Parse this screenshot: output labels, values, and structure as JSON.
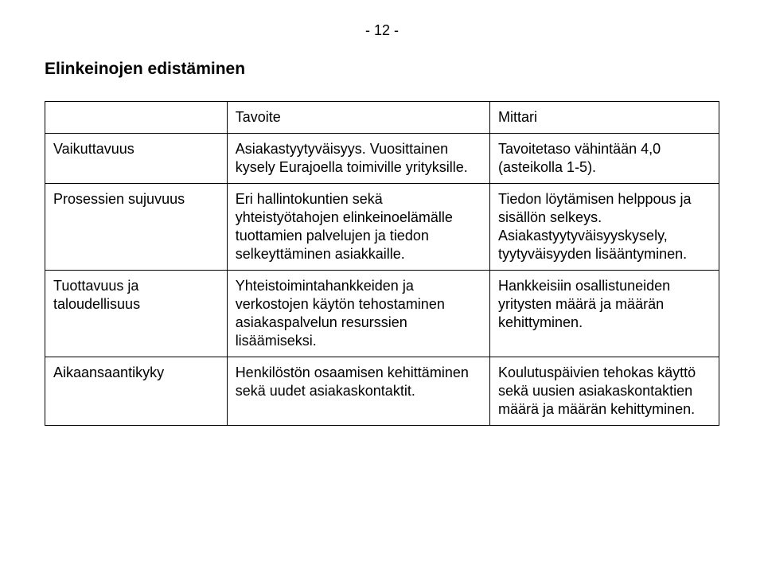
{
  "page_number_text": "- 12 -",
  "heading": "Elinkeinojen edistäminen",
  "table": {
    "header": {
      "col1": "",
      "col2": "Tavoite",
      "col3": "Mittari"
    },
    "rows": [
      {
        "label": "Vaikuttavuus",
        "goal": "Asiakastyytyväisyys. Vuosittainen kysely Eurajoella toimiville yrityksille.",
        "metric": "Tavoitetaso vähintään 4,0 (asteikolla 1-5)."
      },
      {
        "label": "Prosessien sujuvuus",
        "goal": "Eri hallintokuntien sekä yhteistyötahojen elinkeinoelämälle tuottamien palvelujen ja tiedon selkeyttäminen asiakkaille.",
        "metric": "Tiedon löytämisen helppous ja sisällön selkeys. Asiakastyytyväisyyskysely, tyytyväisyyden lisääntyminen."
      },
      {
        "label": "Tuottavuus ja taloudellisuus",
        "goal": "Yhteistoimintahankkeiden ja verkostojen käytön tehostaminen asiakaspalvelun resurssien lisäämiseksi.",
        "metric": "Hankkeisiin osallistuneiden yritysten määrä ja määrän kehittyminen."
      },
      {
        "label": "Aikaansaantikyky",
        "goal": "Henkilöstön osaamisen kehittäminen sekä uudet asiakaskontaktit.",
        "metric": "Koulutuspäivien tehokas käyttö sekä uusien asiakaskontaktien määrä ja määrän kehittyminen."
      }
    ]
  }
}
